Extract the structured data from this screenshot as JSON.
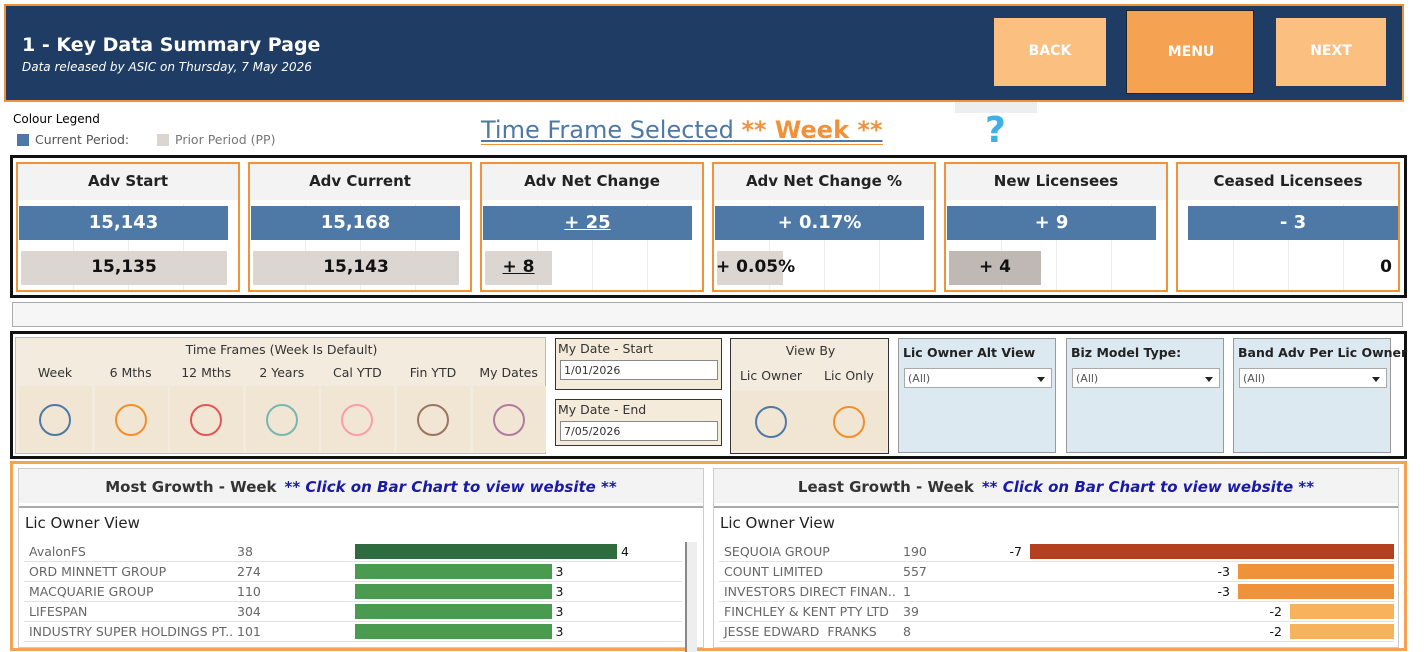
{
  "header": {
    "title": "1 - Key Data Summary Page",
    "subtitle": "Data released by ASIC on Thursday, 7 May 2026",
    "buttons": [
      "BACK",
      "MENU",
      "NEXT"
    ]
  },
  "legend": {
    "title": "Colour Legend",
    "items": [
      "Current Period:",
      "Prior Period (PP)"
    ]
  },
  "time_frame": {
    "label": "Time Frame Selected",
    "value": "** Week **",
    "help": "?"
  },
  "kpis": [
    {
      "title": "Adv Start",
      "current": "15,143",
      "prior": "15,135"
    },
    {
      "title": "Adv Current",
      "current": "15,168",
      "prior": "15,143"
    },
    {
      "title": "Adv Net Change",
      "current": "+ 25",
      "prior": "+ 8"
    },
    {
      "title": "Adv Net Change %",
      "current": "+ 0.17%",
      "prior": "+ 0.05%"
    },
    {
      "title": "New Licensees",
      "current": "+ 9",
      "prior": "+ 4"
    },
    {
      "title": "Ceased Licensees",
      "current": "- 3",
      "prior": "0"
    }
  ],
  "filters": {
    "time_frames": {
      "title": "Time Frames (Week Is Default)",
      "options": [
        "Week",
        "6 Mths",
        "12 Mths",
        "2 Years",
        "Cal YTD",
        "Fin YTD",
        "My Dates"
      ],
      "colors": [
        "#4e79a7",
        "#f28e2b",
        "#e15759",
        "#76b7b2",
        "#ff9da7",
        "#9c755f",
        "#b07aa1"
      ]
    },
    "date_start": {
      "label": "My Date - Start",
      "value": "1/01/2026"
    },
    "date_end": {
      "label": "My Date - End",
      "value": "7/05/2026"
    },
    "view_by": {
      "title": "View By",
      "options": [
        "Lic Owner",
        "Lic Only"
      ],
      "colors": [
        "#4e79a7",
        "#f28e2b"
      ]
    },
    "dropdowns": [
      {
        "label": "Lic Owner Alt View",
        "value": "(All)"
      },
      {
        "label": "Biz Model Type:",
        "value": "(All)"
      },
      {
        "label": "Band Adv Per Lic Owner",
        "value": "(All)"
      }
    ]
  },
  "growth": {
    "most": {
      "title": "Most Growth - Week",
      "note": "** Click on Bar Chart to view website **",
      "view": "Lic Owner View",
      "rows": [
        {
          "name": "AvalonFS",
          "count": 38,
          "change": 4,
          "color": "#2e6b3e"
        },
        {
          "name": "ORD MINNETT GROUP",
          "count": 274,
          "change": 3,
          "color": "#4a9a4f"
        },
        {
          "name": "MACQUARIE GROUP",
          "count": 110,
          "change": 3,
          "color": "#4a9a4f"
        },
        {
          "name": "LIFESPAN",
          "count": 304,
          "change": 3,
          "color": "#4a9a4f"
        },
        {
          "name": "INDUSTRY SUPER HOLDINGS PT..",
          "count": 101,
          "change": 3,
          "color": "#4a9a4f"
        }
      ]
    },
    "least": {
      "title": "Least Growth - Week",
      "note": "** Click on Bar Chart to view website **",
      "view": "Lic Owner View",
      "rows": [
        {
          "name": "SEQUOIA GROUP",
          "count": 190,
          "change": -7,
          "color": "#b5401f"
        },
        {
          "name": "COUNT LIMITED",
          "count": 557,
          "change": -3,
          "color": "#f0923a"
        },
        {
          "name": "INVESTORS DIRECT FINAN..",
          "count": 1,
          "change": -3,
          "color": "#f0923a"
        },
        {
          "name": "FINCHLEY & KENT PTY LTD",
          "count": 39,
          "change": -2,
          "color": "#f7b25c"
        },
        {
          "name": "JESSE EDWARD  FRANKS",
          "count": 8,
          "change": -2,
          "color": "#f7b25c"
        }
      ]
    }
  }
}
